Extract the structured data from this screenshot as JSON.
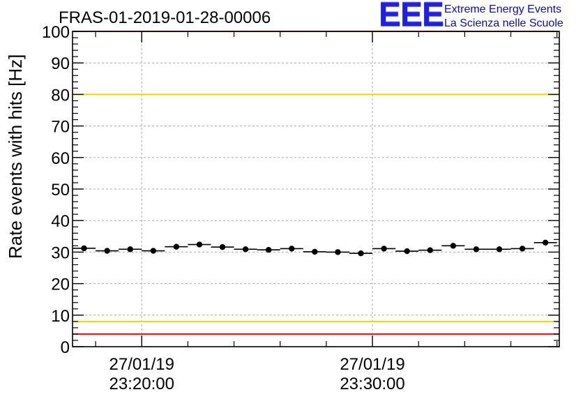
{
  "chart_data": {
    "type": "scatter",
    "title": "FRAS-01-2019-01-28-00006",
    "xlabel": "",
    "ylabel": "Rate events with hits [Hz]",
    "ylim": [
      0,
      100
    ],
    "yticks": [
      0,
      10,
      20,
      30,
      40,
      50,
      60,
      70,
      80,
      90,
      100
    ],
    "xlim_minutes": [
      -3.0,
      18.1
    ],
    "xtick_labels": [
      {
        "minute": 0,
        "date": "27/01/19",
        "time": "23:20:00"
      },
      {
        "minute": 10,
        "date": "27/01/19",
        "time": "23:30:00"
      }
    ],
    "grid": true,
    "series": [
      {
        "name": "rate",
        "bin_width_minutes": 1,
        "x_minutes": [
          -2.5,
          -1.5,
          -0.5,
          0.5,
          1.5,
          2.5,
          3.5,
          4.5,
          5.5,
          6.5,
          7.5,
          8.5,
          9.5,
          10.5,
          11.5,
          12.5,
          13.5,
          14.5,
          15.5,
          16.5,
          17.5
        ],
        "values": [
          31.2,
          30.4,
          30.9,
          30.4,
          31.7,
          32.4,
          31.6,
          30.9,
          30.7,
          31.1,
          30.1,
          30.0,
          29.6,
          31.1,
          30.3,
          30.6,
          32.0,
          30.9,
          30.9,
          31.1,
          33.0
        ],
        "y_error": [
          0.4,
          0.4,
          0.4,
          0.4,
          0.4,
          0.4,
          0.4,
          0.4,
          0.4,
          0.4,
          0.4,
          0.4,
          0.4,
          0.4,
          0.4,
          0.4,
          0.4,
          0.4,
          0.4,
          0.4,
          0.4
        ]
      }
    ],
    "reference_lines": [
      {
        "name": "upper-red-limit",
        "value": 100,
        "color": "#ff0000"
      },
      {
        "name": "upper-yellow-limit",
        "value": 80,
        "color": "#f5d000"
      },
      {
        "name": "lower-yellow-limit",
        "value": 8,
        "color": "#f5d000"
      },
      {
        "name": "lower-red-limit",
        "value": 4,
        "color": "#ff0000"
      }
    ]
  },
  "logo": {
    "mark": "EEE",
    "line1": "Extreme Energy Events",
    "line2": "La Scienza nelle Scuole",
    "color": "#0a0ad6"
  }
}
